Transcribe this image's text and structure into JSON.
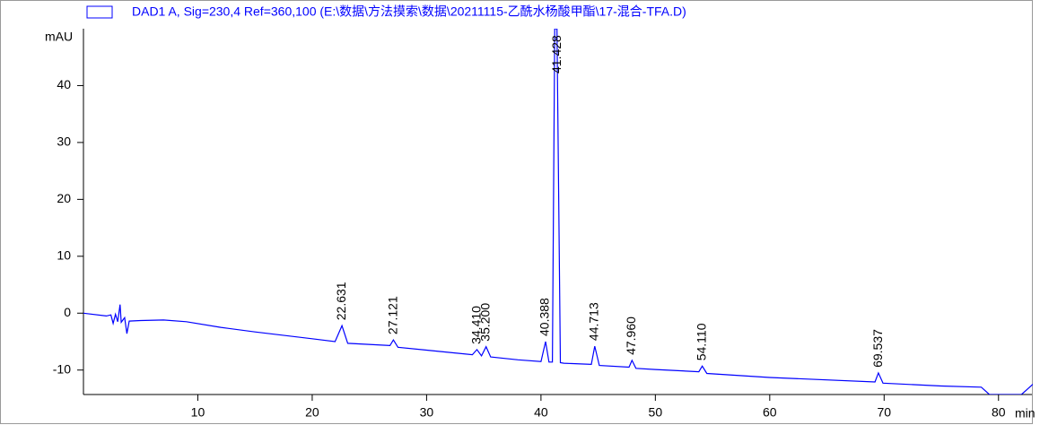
{
  "chart_data": {
    "type": "line",
    "y_unit": "mAU",
    "x_unit": "min",
    "xlim": [
      0,
      83
    ],
    "ylim": [
      -14.3,
      50
    ],
    "xticks": [
      10,
      20,
      30,
      40,
      50,
      60,
      70,
      80
    ],
    "yticks": [
      -10,
      0,
      10,
      20,
      30,
      40
    ],
    "series": [
      {
        "name": "DAD1 A, Sig=230,4 Ref=360,100 (E:\\数据\\方法摸索\\数据\\20211115-乙酰水杨酸甲酯\\17-混合-TFA.D)",
        "color": "#0000ff",
        "x": [
          0,
          2,
          2.4,
          2.6,
          2.8,
          3.0,
          3.2,
          3.3,
          3.6,
          3.8,
          4.0,
          5,
          7,
          9,
          12,
          15,
          20,
          22,
          22.6,
          23.1,
          26.8,
          27.1,
          27.5,
          30,
          34,
          34.4,
          34.8,
          35.2,
          35.6,
          38,
          40,
          40.4,
          40.7,
          41,
          41.2,
          41.4,
          41.7,
          42,
          44.4,
          44.7,
          45.1,
          47.7,
          47.96,
          48.3,
          50,
          53.8,
          54.1,
          54.5,
          60,
          69.2,
          69.5,
          69.9,
          75,
          78.5,
          79.2,
          82,
          83
        ],
        "values": [
          0,
          -0.5,
          -0.3,
          -1.8,
          -0.2,
          -1.5,
          1.5,
          -1.6,
          -0.8,
          -3.6,
          -1.4,
          -1.3,
          -1.2,
          -1.5,
          -2.5,
          -3.3,
          -4.5,
          -5.0,
          -2.2,
          -5.3,
          -5.7,
          -4.7,
          -6.0,
          -6.5,
          -7.3,
          -6.4,
          -7.5,
          -5.9,
          -7.7,
          -8.2,
          -8.5,
          -5.0,
          -8.6,
          -8.6,
          50,
          50,
          -8.7,
          -8.8,
          -9.0,
          -5.8,
          -9.2,
          -9.5,
          -8.3,
          -9.7,
          -9.9,
          -10.3,
          -9.3,
          -10.6,
          -11.3,
          -12.1,
          -10.5,
          -12.3,
          -12.8,
          -13.0,
          -14.3,
          -14.3,
          -12.5
        ]
      }
    ],
    "peaks": [
      {
        "label": "22.631",
        "x": 22.631,
        "y": -2.2
      },
      {
        "label": "27.121",
        "x": 27.121,
        "y": -4.7
      },
      {
        "label": "34.410",
        "x": 34.41,
        "y": -6.4
      },
      {
        "label": "35.200",
        "x": 35.2,
        "y": -5.9
      },
      {
        "label": "40.388",
        "x": 40.388,
        "y": -5.0
      },
      {
        "label": "41.428",
        "x": 41.428,
        "y": 50
      },
      {
        "label": "44.713",
        "x": 44.713,
        "y": -5.8
      },
      {
        "label": "47.960",
        "x": 47.96,
        "y": -8.3
      },
      {
        "label": "54.110",
        "x": 54.11,
        "y": -9.3
      },
      {
        "label": "69.537",
        "x": 69.537,
        "y": -10.5
      }
    ]
  }
}
